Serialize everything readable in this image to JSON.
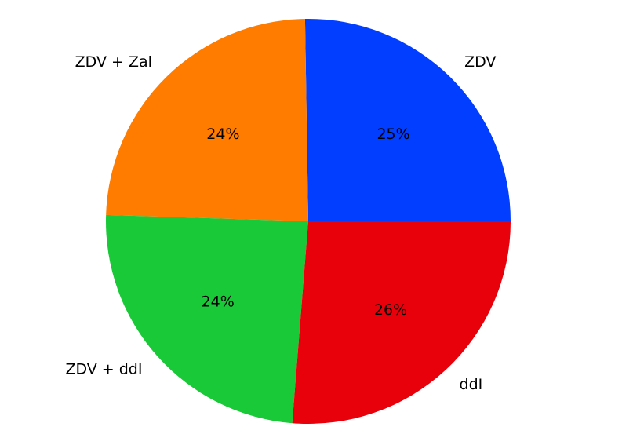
{
  "chart_data": {
    "type": "pie",
    "title": "",
    "slices": [
      {
        "label": "ZDV",
        "value": 25,
        "pct_label": "25%",
        "color": "#023eff"
      },
      {
        "label": "ZDV + Zal",
        "value": 24,
        "pct_label": "24%",
        "color": "#ff7c00"
      },
      {
        "label": "ZDV + ddI",
        "value": 24,
        "pct_label": "24%",
        "color": "#1ac938"
      },
      {
        "label": "ddI",
        "value": 26,
        "pct_label": "26%",
        "color": "#e8000b"
      }
    ],
    "start_angle_deg": 0,
    "direction": "counterclockwise"
  }
}
